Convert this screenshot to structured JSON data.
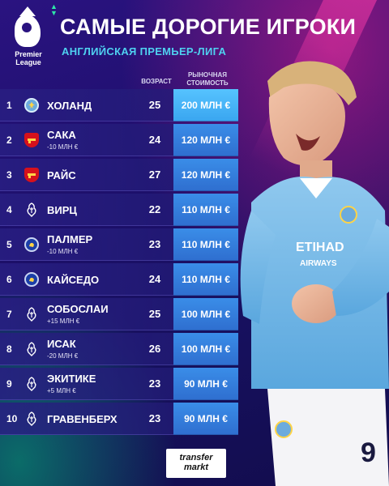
{
  "header": {
    "logo_text_line1": "Premier",
    "logo_text_line2": "League",
    "title": "САМЫЕ ДОРОГИЕ ИГРОКИ",
    "subtitle": "АНГЛИЙСКАЯ ПРЕМЬЕР-ЛИГА"
  },
  "columns": {
    "age": "ВОЗРАСТ",
    "value_line1": "РЫНОЧНАЯ",
    "value_line2": "СТОИМОСТЬ"
  },
  "players": [
    {
      "rank": "1",
      "club": "man-city",
      "name": "ХОЛАНД",
      "change": "",
      "age": "25",
      "value": "200 МЛН €"
    },
    {
      "rank": "2",
      "club": "arsenal",
      "name": "САКА",
      "change": "-10 МЛН €",
      "age": "24",
      "value": "120 МЛН €"
    },
    {
      "rank": "3",
      "club": "arsenal",
      "name": "РАЙС",
      "change": "",
      "age": "27",
      "value": "120 МЛН €"
    },
    {
      "rank": "4",
      "club": "liverpool",
      "name": "ВИРЦ",
      "change": "",
      "age": "22",
      "value": "110 МЛН €"
    },
    {
      "rank": "5",
      "club": "chelsea",
      "name": "ПАЛМЕР",
      "change": "-10 МЛН €",
      "age": "23",
      "value": "110 МЛН €"
    },
    {
      "rank": "6",
      "club": "chelsea",
      "name": "КАЙСЕДО",
      "change": "",
      "age": "24",
      "value": "110 МЛН €"
    },
    {
      "rank": "7",
      "club": "liverpool",
      "name": "СОБОСЛАИ",
      "change": "+15 МЛН €",
      "age": "25",
      "value": "100 МЛН €"
    },
    {
      "rank": "8",
      "club": "liverpool",
      "name": "ИСАК",
      "change": "-20 МЛН €",
      "age": "26",
      "value": "100 МЛН €"
    },
    {
      "rank": "9",
      "club": "liverpool",
      "name": "ЭКИТИКЕ",
      "change": "+5 МЛН €",
      "age": "23",
      "value": "90 МЛН €"
    },
    {
      "rank": "10",
      "club": "liverpool",
      "name": "ГРАВЕНБЕРХ",
      "change": "",
      "age": "23",
      "value": "90 МЛН €"
    }
  ],
  "player_image": {
    "sponsor_line1": "ETIHAD",
    "sponsor_line2": "AIRWAYS",
    "shirt_number": "9"
  },
  "footer": {
    "brand_line1": "transfer",
    "brand_line2": "markt"
  },
  "colors": {
    "background": "#1c0f6a",
    "accent_cyan": "#4fd1f0",
    "value_cell": "#2f6fd0",
    "value_cell_top": "#3aa6f0",
    "accent_green": "#2ee8a8"
  }
}
